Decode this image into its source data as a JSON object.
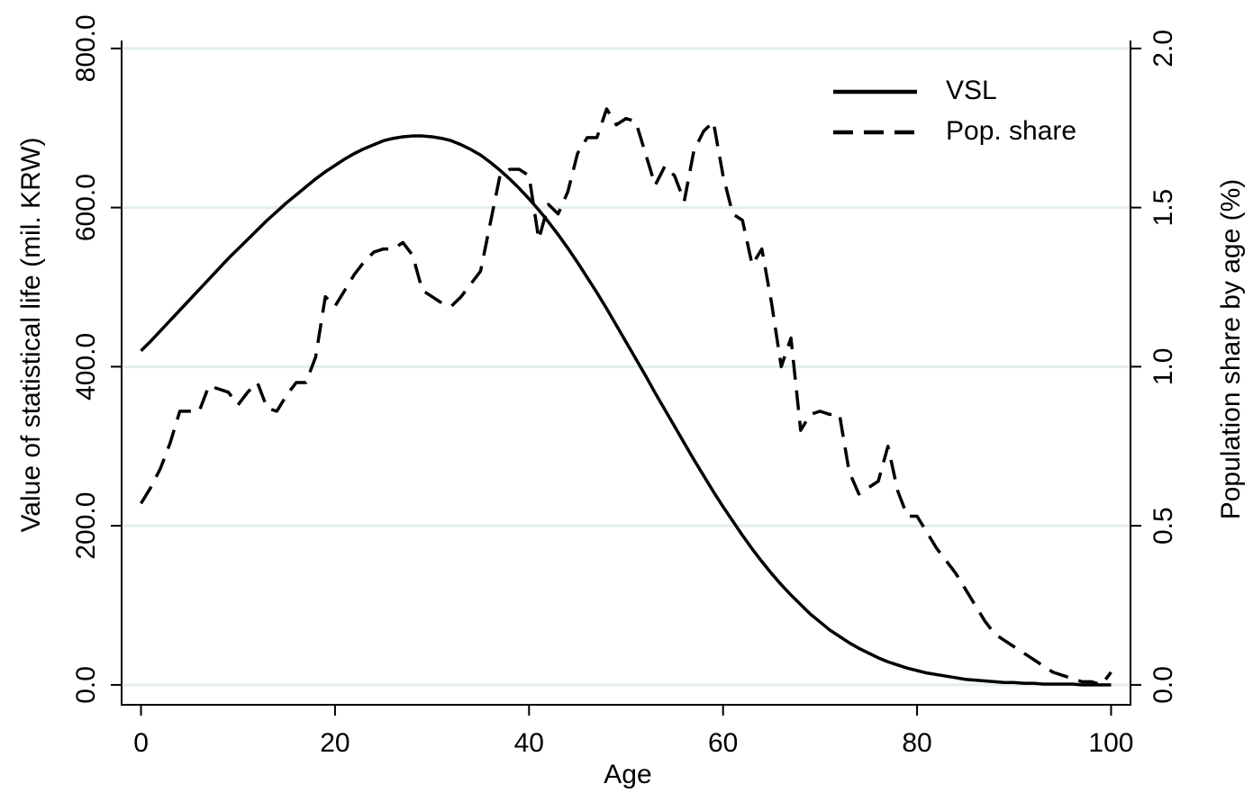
{
  "chart_data": {
    "type": "line",
    "xlabel": "Age",
    "ylabel": "Value of statistical life (mil. KRW)",
    "y2label": "Population share by age (%)",
    "x": [
      0,
      1,
      2,
      3,
      4,
      5,
      6,
      7,
      8,
      9,
      10,
      11,
      12,
      13,
      14,
      15,
      16,
      17,
      18,
      19,
      20,
      21,
      22,
      23,
      24,
      25,
      26,
      27,
      28,
      29,
      30,
      31,
      32,
      33,
      34,
      35,
      36,
      37,
      38,
      39,
      40,
      41,
      42,
      43,
      44,
      45,
      46,
      47,
      48,
      49,
      50,
      51,
      52,
      53,
      54,
      55,
      56,
      57,
      58,
      59,
      60,
      61,
      62,
      63,
      64,
      65,
      66,
      67,
      68,
      69,
      70,
      71,
      72,
      73,
      74,
      75,
      76,
      77,
      78,
      79,
      80,
      81,
      82,
      83,
      84,
      85,
      86,
      87,
      88,
      89,
      90,
      91,
      92,
      93,
      94,
      95,
      96,
      97,
      98,
      99,
      100
    ],
    "series": [
      {
        "name": "VSL",
        "color": "#000000",
        "dash": false,
        "values": [
          420,
          432,
          445,
          458,
          471,
          484,
          497,
          510,
          523,
          536,
          548,
          560,
          572,
          584,
          595,
          606,
          616,
          626,
          636,
          645,
          653,
          661,
          668,
          674,
          679,
          684,
          687,
          689,
          690,
          690,
          689,
          687,
          684,
          679,
          673,
          666,
          657,
          647,
          636,
          624,
          611,
          597,
          582,
          566,
          549,
          531,
          512,
          493,
          473,
          452,
          431,
          410,
          389,
          367,
          346,
          325,
          304,
          283,
          263,
          243,
          224,
          206,
          188,
          171,
          155,
          140,
          126,
          113,
          101,
          89,
          79,
          69,
          61,
          53,
          46,
          40,
          34,
          29,
          25,
          21,
          18,
          15,
          13,
          11,
          9,
          7,
          6,
          5,
          4,
          3,
          3,
          2,
          2,
          1,
          1,
          1,
          1,
          0,
          0,
          0,
          0
        ]
      },
      {
        "name": "Pop. share",
        "color": "#000000",
        "dash": true,
        "axis": "y2",
        "values": [
          0.57,
          0.62,
          0.68,
          0.76,
          0.86,
          0.86,
          0.86,
          0.94,
          0.93,
          0.92,
          0.88,
          0.92,
          0.95,
          0.87,
          0.86,
          0.91,
          0.95,
          0.95,
          1.03,
          1.22,
          1.19,
          1.24,
          1.29,
          1.33,
          1.36,
          1.37,
          1.37,
          1.39,
          1.35,
          1.24,
          1.22,
          1.2,
          1.19,
          1.22,
          1.26,
          1.3,
          1.45,
          1.6,
          1.62,
          1.62,
          1.6,
          1.4,
          1.51,
          1.48,
          1.55,
          1.67,
          1.72,
          1.72,
          1.81,
          1.76,
          1.78,
          1.77,
          1.67,
          1.57,
          1.63,
          1.6,
          1.52,
          1.68,
          1.74,
          1.77,
          1.6,
          1.48,
          1.46,
          1.32,
          1.37,
          1.2,
          1.0,
          1.09,
          0.8,
          0.85,
          0.86,
          0.85,
          0.85,
          0.67,
          0.6,
          0.62,
          0.64,
          0.75,
          0.61,
          0.53,
          0.53,
          0.48,
          0.43,
          0.39,
          0.35,
          0.3,
          0.25,
          0.2,
          0.16,
          0.14,
          0.12,
          0.1,
          0.08,
          0.06,
          0.04,
          0.03,
          0.02,
          0.01,
          0.01,
          0.0,
          0.04
        ]
      }
    ],
    "xlim": [
      -2,
      102
    ],
    "xticks": [
      0,
      20,
      40,
      60,
      80,
      100
    ],
    "ylim": [
      -25,
      810
    ],
    "yticks": [
      {
        "value": 0,
        "label": "0.0"
      },
      {
        "value": 200,
        "label": "200.0"
      },
      {
        "value": 400,
        "label": "400.0"
      },
      {
        "value": 600,
        "label": "600.0"
      },
      {
        "value": 800,
        "label": "800.0"
      }
    ],
    "y2lim": [
      -0.0625,
      2.025
    ],
    "y2ticks": [
      {
        "value": 0,
        "label": "0.0"
      },
      0.5,
      {
        "value": 1,
        "label": "1.0"
      },
      1.5,
      {
        "value": 2,
        "label": "2.0"
      }
    ],
    "grid": true,
    "legend": "top-right"
  }
}
